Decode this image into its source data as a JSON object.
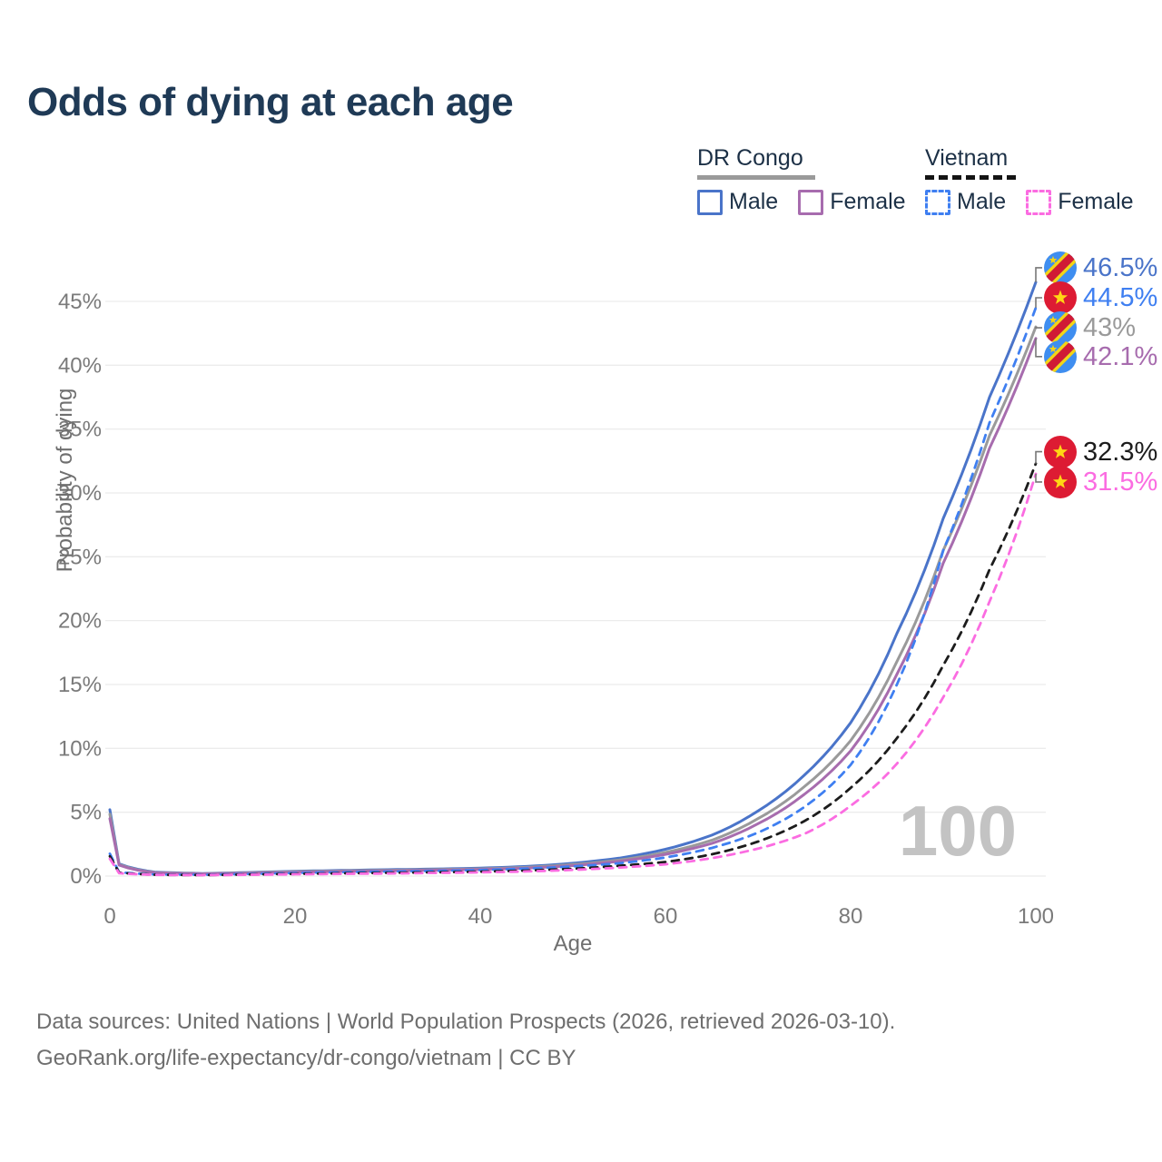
{
  "title": "Odds of dying at each age",
  "watermark": "100",
  "legend": {
    "groups": [
      {
        "label": "DR Congo",
        "line_style": "solid",
        "underline_color": "#9a9a9a",
        "items": [
          {
            "label": "Male",
            "color": "#4a74c9",
            "dashed": false
          },
          {
            "label": "Female",
            "color": "#a76cae",
            "dashed": false
          }
        ]
      },
      {
        "label": "Vietnam",
        "line_style": "dashed",
        "underline_color": "#141414",
        "items": [
          {
            "label": "Male",
            "color": "#3f7ff1",
            "dashed": true
          },
          {
            "label": "Female",
            "color": "#fb6ce1",
            "dashed": true
          }
        ]
      }
    ]
  },
  "chart_data": {
    "type": "line",
    "title": "Odds of dying at each age",
    "xlabel": "Age",
    "ylabel": "Probability of dying",
    "xlim": [
      0,
      100
    ],
    "ylim": [
      0,
      47
    ],
    "xticks": [
      0,
      20,
      40,
      60,
      80,
      100
    ],
    "yticks": [
      0,
      5,
      10,
      15,
      20,
      25,
      30,
      35,
      40,
      45
    ],
    "ytick_suffix": "%",
    "grid": "horizontal",
    "x": [
      0,
      1,
      5,
      10,
      15,
      20,
      25,
      30,
      35,
      40,
      45,
      50,
      55,
      60,
      65,
      70,
      75,
      80,
      85,
      90,
      95,
      100
    ],
    "series": [
      {
        "id": "dr-congo-male",
        "name": "DR Congo Male",
        "country": "DR Congo",
        "sex": "Male",
        "color": "#4a74c9",
        "dashed": false,
        "values": [
          5.2,
          0.95,
          0.3,
          0.2,
          0.28,
          0.38,
          0.44,
          0.5,
          0.55,
          0.62,
          0.75,
          1.0,
          1.4,
          2.1,
          3.2,
          5.1,
          7.9,
          12.0,
          19.0,
          28.0,
          37.5,
          46.5
        ]
      },
      {
        "id": "dr-congo-both",
        "name": "DR Congo",
        "country": "DR Congo",
        "sex": "Both",
        "color": "#9a9a9a",
        "dashed": false,
        "values": [
          4.85,
          0.9,
          0.27,
          0.18,
          0.25,
          0.34,
          0.4,
          0.45,
          0.5,
          0.56,
          0.68,
          0.9,
          1.25,
          1.85,
          2.8,
          4.5,
          7.0,
          10.6,
          16.8,
          25.5,
          34.5,
          43.0
        ]
      },
      {
        "id": "dr-congo-female",
        "name": "DR Congo Female",
        "country": "DR Congo",
        "sex": "Female",
        "color": "#a76cae",
        "dashed": false,
        "values": [
          4.5,
          0.85,
          0.25,
          0.17,
          0.22,
          0.3,
          0.36,
          0.41,
          0.46,
          0.52,
          0.62,
          0.82,
          1.15,
          1.7,
          2.55,
          4.1,
          6.4,
          9.8,
          15.8,
          24.5,
          33.5,
          42.1
        ]
      },
      {
        "id": "vietnam-male",
        "name": "Vietnam Male",
        "country": "Vietnam",
        "sex": "Male",
        "color": "#3f7ff1",
        "dashed": true,
        "values": [
          1.75,
          0.3,
          0.12,
          0.1,
          0.16,
          0.24,
          0.3,
          0.35,
          0.4,
          0.47,
          0.58,
          0.75,
          1.0,
          1.45,
          2.2,
          3.4,
          5.4,
          8.7,
          15.0,
          25.5,
          35.5,
          44.5
        ]
      },
      {
        "id": "vietnam-both",
        "name": "Vietnam",
        "country": "Vietnam",
        "sex": "Both",
        "color": "#1c1c1c",
        "dashed": true,
        "values": [
          1.55,
          0.26,
          0.1,
          0.08,
          0.12,
          0.17,
          0.21,
          0.25,
          0.29,
          0.34,
          0.43,
          0.57,
          0.8,
          1.1,
          1.7,
          2.7,
          4.3,
          6.9,
          10.8,
          16.5,
          24.0,
          32.3
        ]
      },
      {
        "id": "vietnam-female",
        "name": "Vietnam Female",
        "country": "Vietnam",
        "sex": "Female",
        "color": "#fb6ce1",
        "dashed": true,
        "values": [
          1.35,
          0.22,
          0.09,
          0.07,
          0.1,
          0.14,
          0.17,
          0.2,
          0.24,
          0.29,
          0.36,
          0.48,
          0.66,
          0.92,
          1.4,
          2.15,
          3.3,
          5.5,
          8.8,
          14.0,
          21.5,
          31.5
        ]
      }
    ]
  },
  "end_labels": [
    {
      "text": "46.5%",
      "value": 46.5,
      "color": "#4a74c9",
      "flag": "dr-congo",
      "series": "dr-congo-male"
    },
    {
      "text": "44.5%",
      "value": 44.5,
      "color": "#3f7ff1",
      "flag": "vietnam",
      "series": "vietnam-male"
    },
    {
      "text": "43%",
      "value": 43.0,
      "color": "#9a9a9a",
      "flag": "dr-congo",
      "series": "dr-congo-both"
    },
    {
      "text": "42.1%",
      "value": 42.1,
      "color": "#a76cae",
      "flag": "dr-congo",
      "series": "dr-congo-female"
    },
    {
      "text": "32.3%",
      "value": 32.3,
      "color": "#1c1c1c",
      "flag": "vietnam",
      "series": "vietnam-both"
    },
    {
      "text": "31.5%",
      "value": 31.5,
      "color": "#fb6ce1",
      "flag": "vietnam",
      "series": "vietnam-female"
    }
  ],
  "footer": {
    "line1": "Data sources: United Nations | World Population Prospects (2026, retrieved 2026-03-10).",
    "line2": "GeoRank.org/life-expectancy/dr-congo/vietnam | CC BY"
  }
}
